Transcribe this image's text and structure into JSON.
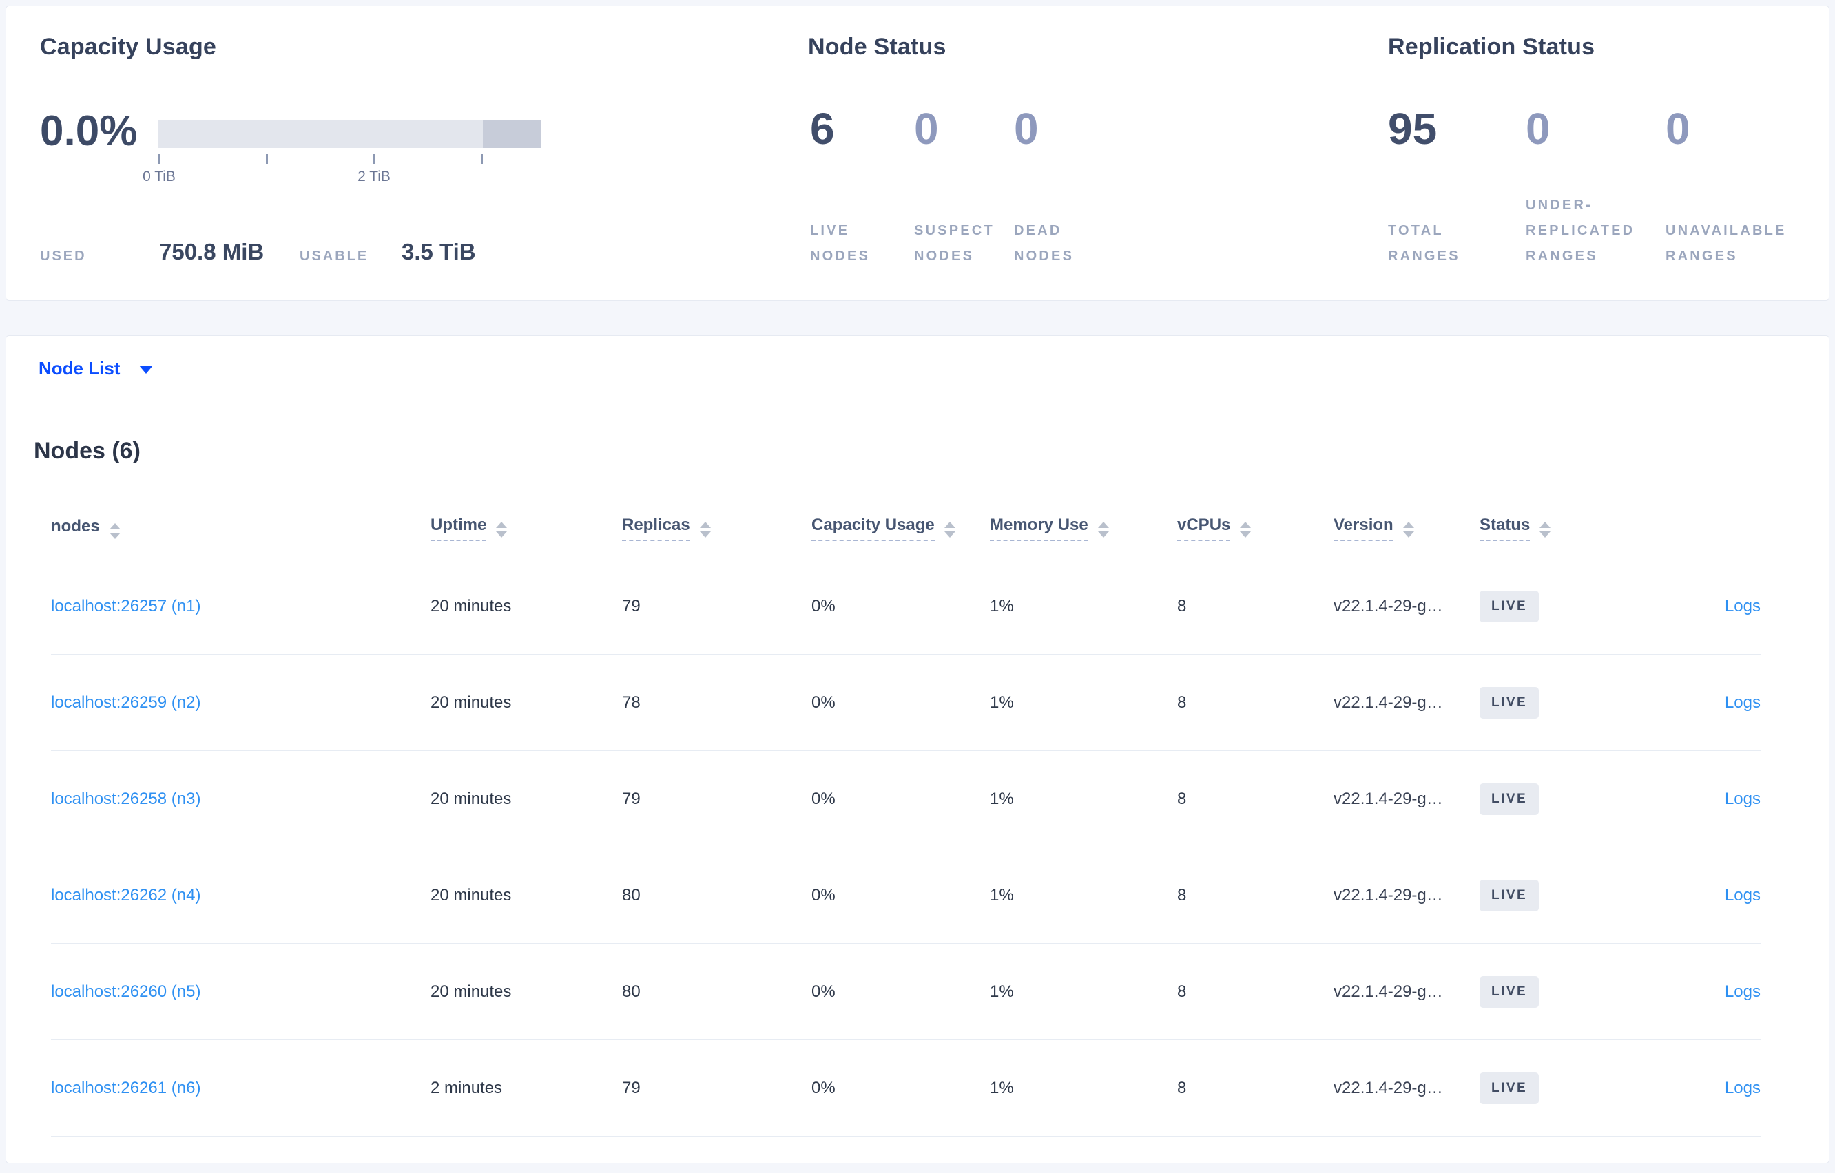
{
  "summary": {
    "capacity": {
      "title": "Capacity Usage",
      "percent": "0.0%",
      "tick_labels": [
        "0 TiB",
        "2 TiB"
      ],
      "used_label": "USED",
      "used_value": "750.8 MiB",
      "usable_label": "USABLE",
      "usable_value": "3.5 TiB"
    },
    "node_status": {
      "title": "Node Status",
      "stats": [
        {
          "value": "6",
          "label": "LIVE\nNODES"
        },
        {
          "value": "0",
          "label": "SUSPECT\nNODES"
        },
        {
          "value": "0",
          "label": "DEAD\nNODES"
        }
      ]
    },
    "replication": {
      "title": "Replication Status",
      "stats": [
        {
          "value": "95",
          "label": "TOTAL\nRANGES"
        },
        {
          "value": "0",
          "label": "UNDER-\nREPLICATED\nRANGES"
        },
        {
          "value": "0",
          "label": "UNAVAILABLE\nRANGES"
        }
      ]
    }
  },
  "node_list": {
    "selector_label": "Node List",
    "heading": "Nodes (6)"
  },
  "table": {
    "columns": [
      "nodes",
      "Uptime",
      "Replicas",
      "Capacity Usage",
      "Memory Use",
      "vCPUs",
      "Version",
      "Status",
      ""
    ],
    "rows": [
      {
        "node": "localhost:26257 (n1)",
        "uptime": "20 minutes",
        "replicas": "79",
        "capacity": "0%",
        "memory": "1%",
        "vcpus": "8",
        "version": "v22.1.4-29-g…",
        "status": "LIVE",
        "logs": "Logs"
      },
      {
        "node": "localhost:26259 (n2)",
        "uptime": "20 minutes",
        "replicas": "78",
        "capacity": "0%",
        "memory": "1%",
        "vcpus": "8",
        "version": "v22.1.4-29-g…",
        "status": "LIVE",
        "logs": "Logs"
      },
      {
        "node": "localhost:26258 (n3)",
        "uptime": "20 minutes",
        "replicas": "79",
        "capacity": "0%",
        "memory": "1%",
        "vcpus": "8",
        "version": "v22.1.4-29-g…",
        "status": "LIVE",
        "logs": "Logs"
      },
      {
        "node": "localhost:26262 (n4)",
        "uptime": "20 minutes",
        "replicas": "80",
        "capacity": "0%",
        "memory": "1%",
        "vcpus": "8",
        "version": "v22.1.4-29-g…",
        "status": "LIVE",
        "logs": "Logs"
      },
      {
        "node": "localhost:26260 (n5)",
        "uptime": "20 minutes",
        "replicas": "80",
        "capacity": "0%",
        "memory": "1%",
        "vcpus": "8",
        "version": "v22.1.4-29-g…",
        "status": "LIVE",
        "logs": "Logs"
      },
      {
        "node": "localhost:26261 (n6)",
        "uptime": "2 minutes",
        "replicas": "79",
        "capacity": "0%",
        "memory": "1%",
        "vcpus": "8",
        "version": "v22.1.4-29-g…",
        "status": "LIVE",
        "logs": "Logs"
      }
    ]
  },
  "colors": {
    "page_background": "#f4f6fb",
    "card_background": "#ffffff",
    "card_border": "#e6eaf2",
    "title_text": "#36425c",
    "stat_number_primary": "#414e6b",
    "stat_number_muted": "#8e99bd",
    "stat_label": "#9ba6bd",
    "bar_light": "#e3e6ed",
    "bar_dark": "#c7ccd9",
    "dropdown_blue": "#0b4dff",
    "link_blue": "#2e90f2",
    "badge_background": "#e8ebf1",
    "badge_text": "#414c63"
  }
}
